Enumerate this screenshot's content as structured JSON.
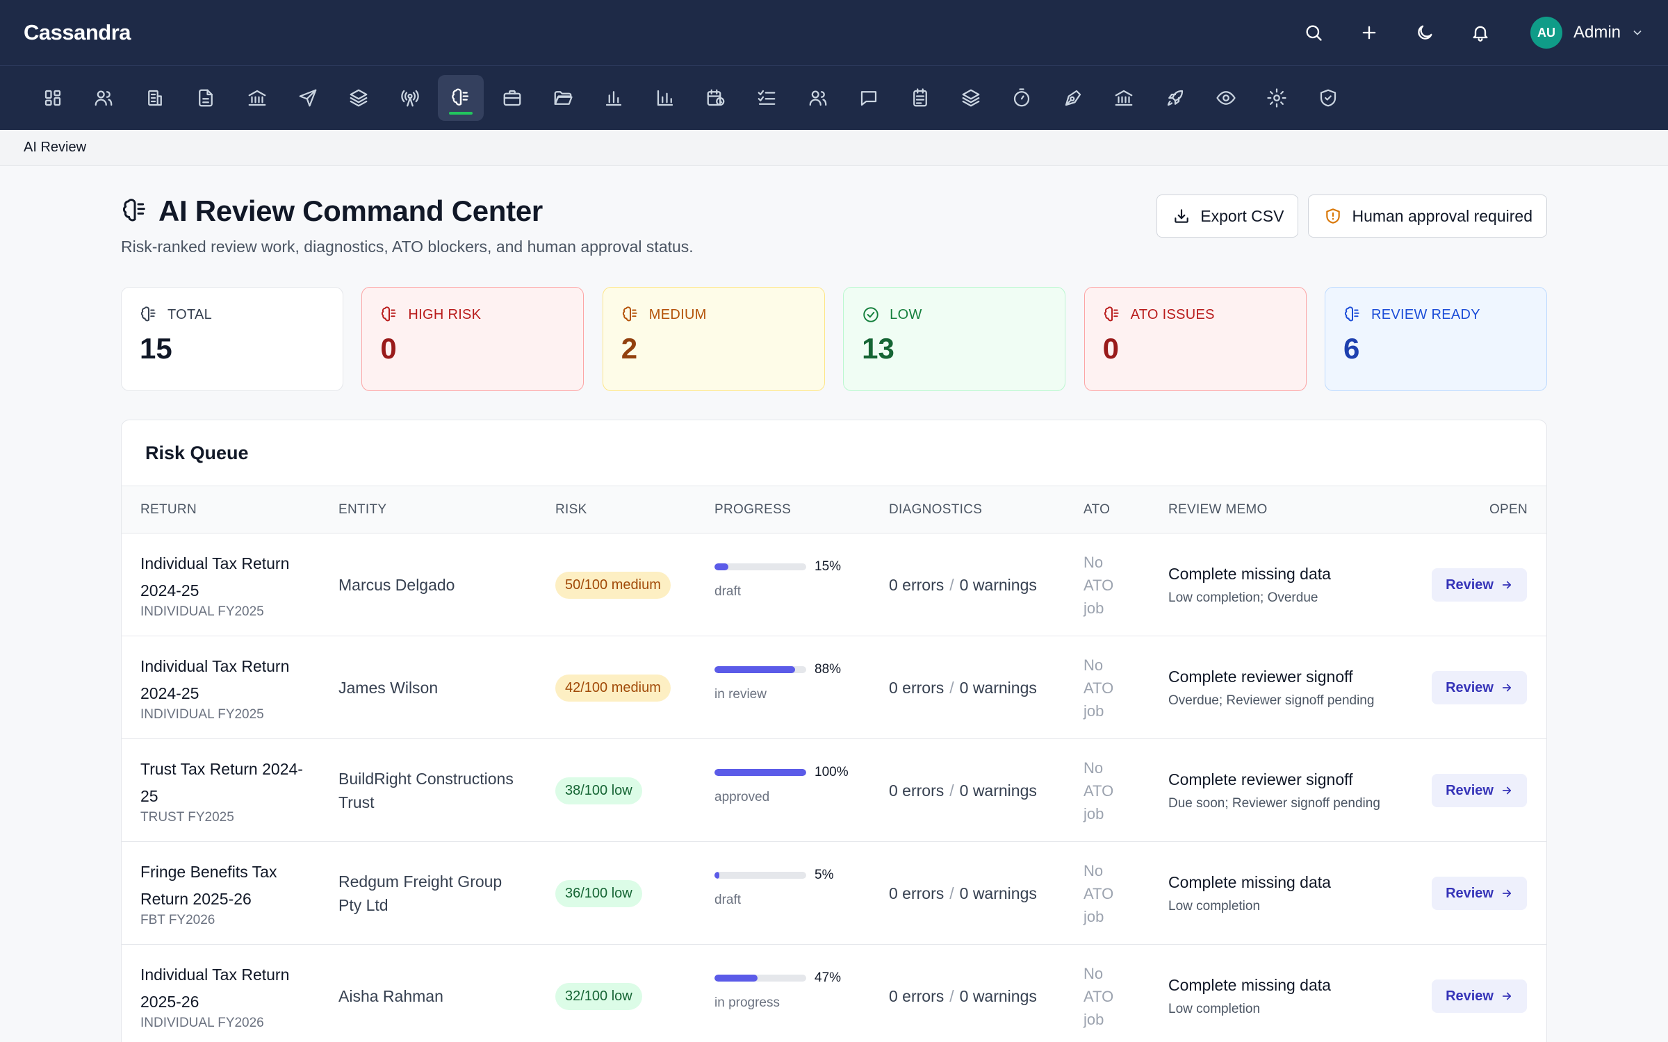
{
  "app": {
    "brand": "Cassandra",
    "user_initials": "AU",
    "user_name": "Admin"
  },
  "breadcrumb": "AI Review",
  "header": {
    "title": "AI Review Command Center",
    "subtitle": "Risk-ranked review work, diagnostics, ATO blockers, and human approval status.",
    "export_label": "Export CSV",
    "approval_label": "Human approval required"
  },
  "stats": [
    {
      "label": "TOTAL",
      "value": "15"
    },
    {
      "label": "HIGH RISK",
      "value": "0"
    },
    {
      "label": "MEDIUM",
      "value": "2"
    },
    {
      "label": "LOW",
      "value": "13"
    },
    {
      "label": "ATO ISSUES",
      "value": "0"
    },
    {
      "label": "REVIEW READY",
      "value": "6"
    }
  ],
  "queue": {
    "title": "Risk Queue",
    "columns": {
      "return": "RETURN",
      "entity": "ENTITY",
      "risk": "RISK",
      "progress": "PROGRESS",
      "diagnostics": "DIAGNOSTICS",
      "ato": "ATO",
      "memo": "REVIEW MEMO",
      "open": "OPEN"
    },
    "review_label": "Review",
    "rows": [
      {
        "name": "Individual Tax Return 2024-25",
        "sub": "INDIVIDUAL FY2025",
        "entity": "Marcus Delgado",
        "risk": "50/100 medium",
        "risk_level": "medium",
        "progress": 15,
        "progress_label": "15%",
        "status": "draft",
        "errors": "0 errors",
        "warnings": "0 warnings",
        "ato": "No ATO job",
        "memo_title": "Complete missing data",
        "memo_sub": "Low completion; Overdue"
      },
      {
        "name": "Individual Tax Return 2024-25",
        "sub": "INDIVIDUAL FY2025",
        "entity": "James Wilson",
        "risk": "42/100 medium",
        "risk_level": "medium",
        "progress": 88,
        "progress_label": "88%",
        "status": "in review",
        "errors": "0 errors",
        "warnings": "0 warnings",
        "ato": "No ATO job",
        "memo_title": "Complete reviewer signoff",
        "memo_sub": "Overdue; Reviewer signoff pending"
      },
      {
        "name": "Trust Tax Return 2024-25",
        "sub": "TRUST FY2025",
        "entity": "BuildRight Constructions Trust",
        "risk": "38/100 low",
        "risk_level": "low",
        "progress": 100,
        "progress_label": "100%",
        "status": "approved",
        "errors": "0 errors",
        "warnings": "0 warnings",
        "ato": "No ATO job",
        "memo_title": "Complete reviewer signoff",
        "memo_sub": "Due soon; Reviewer signoff pending"
      },
      {
        "name": "Fringe Benefits Tax Return 2025-26",
        "sub": "FBT FY2026",
        "entity": "Redgum Freight Group Pty Ltd",
        "risk": "36/100 low",
        "risk_level": "low",
        "progress": 5,
        "progress_label": "5%",
        "status": "draft",
        "errors": "0 errors",
        "warnings": "0 warnings",
        "ato": "No ATO job",
        "memo_title": "Complete missing data",
        "memo_sub": "Low completion"
      },
      {
        "name": "Individual Tax Return 2025-26",
        "sub": "INDIVIDUAL FY2026",
        "entity": "Aisha Rahman",
        "risk": "32/100 low",
        "risk_level": "low",
        "progress": 47,
        "progress_label": "47%",
        "status": "in progress",
        "errors": "0 errors",
        "warnings": "0 warnings",
        "ato": "No ATO job",
        "memo_title": "Complete missing data",
        "memo_sub": "Low completion"
      }
    ]
  },
  "colors": {
    "nav_bg": "#1e2a47",
    "accent": "#5b5be8",
    "active_indicator": "#22c55e"
  }
}
